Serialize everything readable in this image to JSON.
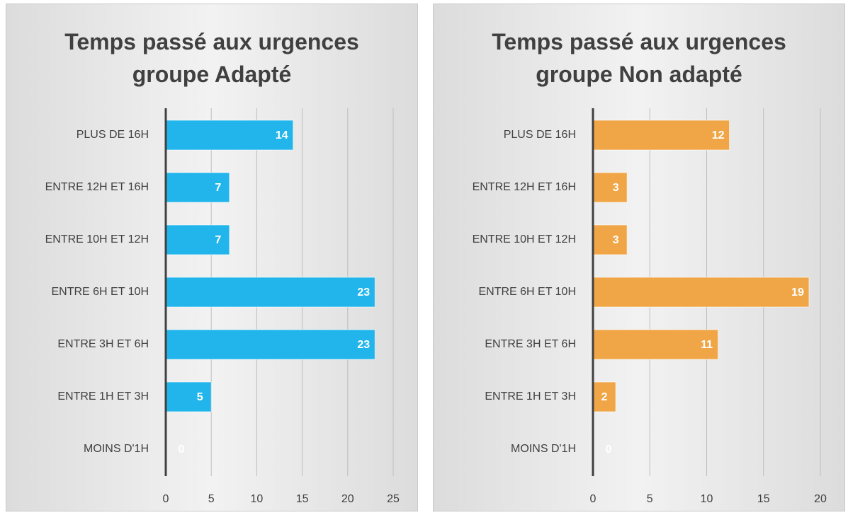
{
  "chart_data": [
    {
      "type": "barh",
      "title": "Temps passé aux urgences groupe Adapté",
      "categories": [
        "PLUS DE 16H",
        "ENTRE 12H ET 16H",
        "ENTRE 10H ET 12H",
        "ENTRE 6H ET 10H",
        "ENTRE 3H ET 6H",
        "ENTRE 1H ET 3H",
        "MOINS D'1H"
      ],
      "values": [
        14,
        7,
        7,
        23,
        23,
        5,
        0
      ],
      "color": "#22b5eb",
      "xlim": [
        0,
        25
      ],
      "xticks": [
        0,
        5,
        10,
        15,
        20,
        25
      ],
      "grid": true
    },
    {
      "type": "barh",
      "title": "Temps passé aux urgences groupe Non adapté",
      "categories": [
        "PLUS DE 16H",
        "ENTRE 12H ET 16H",
        "ENTRE 10H ET 12H",
        "ENTRE 6H ET 10H",
        "ENTRE 3H ET 6H",
        "ENTRE 1H ET 3H",
        "MOINS D'1H"
      ],
      "values": [
        12,
        3,
        3,
        19,
        11,
        2,
        0
      ],
      "color": "#f0a646",
      "xlim": [
        0,
        20
      ],
      "xticks": [
        0,
        5,
        10,
        15,
        20
      ],
      "grid": true
    }
  ]
}
